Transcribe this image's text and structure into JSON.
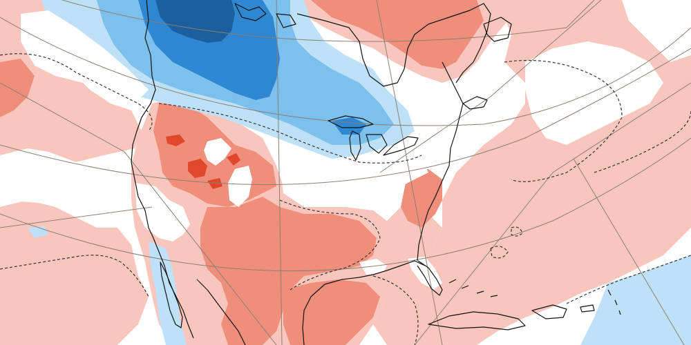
{
  "map": {
    "projection": "polar-stereographic",
    "region": "North America",
    "field": "anomaly",
    "graticule": true,
    "colors": {
      "background": "#ffffff",
      "warm_weak": "#f9c6bd",
      "warm_moderate": "#f08e7c",
      "warm_strong": "#e0482c",
      "cool_weak": "#bfe1f7",
      "cool_moderate": "#7cc1ee",
      "cool_strong": "#2e87d0",
      "cool_extreme": "#1b5f9e",
      "coastline": "#111111",
      "graticule": "#8a7f73",
      "contour": "#333333"
    },
    "contour_style": "dashed",
    "coastline_style": "solid"
  }
}
